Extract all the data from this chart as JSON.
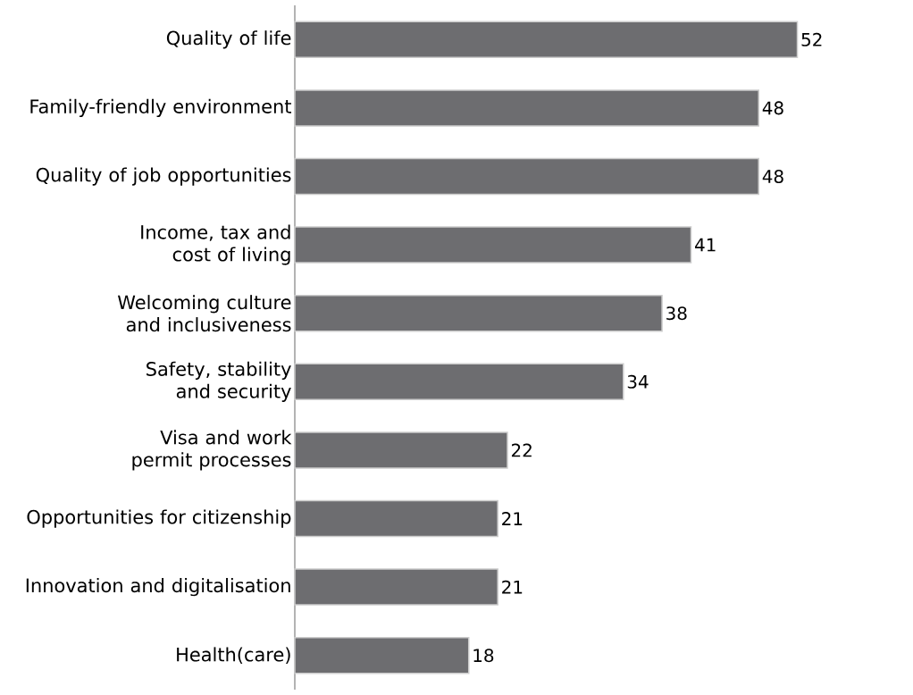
{
  "chart_data": {
    "type": "bar",
    "orientation": "horizontal",
    "color": "#6d6d70",
    "data_labels": true,
    "categories": [
      "Quality of life",
      "Family-friendly environment",
      "Quality of job opportunities",
      "Income, tax and cost of living",
      "Welcoming culture and inclusiveness",
      "Safety, stability and security",
      "Visa and work permit processes",
      "Opportunities for citizenship",
      "Innovation and digitalisation",
      "Health(care)"
    ],
    "values": [
      52,
      48,
      48,
      41,
      38,
      34,
      22,
      21,
      21,
      18
    ]
  }
}
